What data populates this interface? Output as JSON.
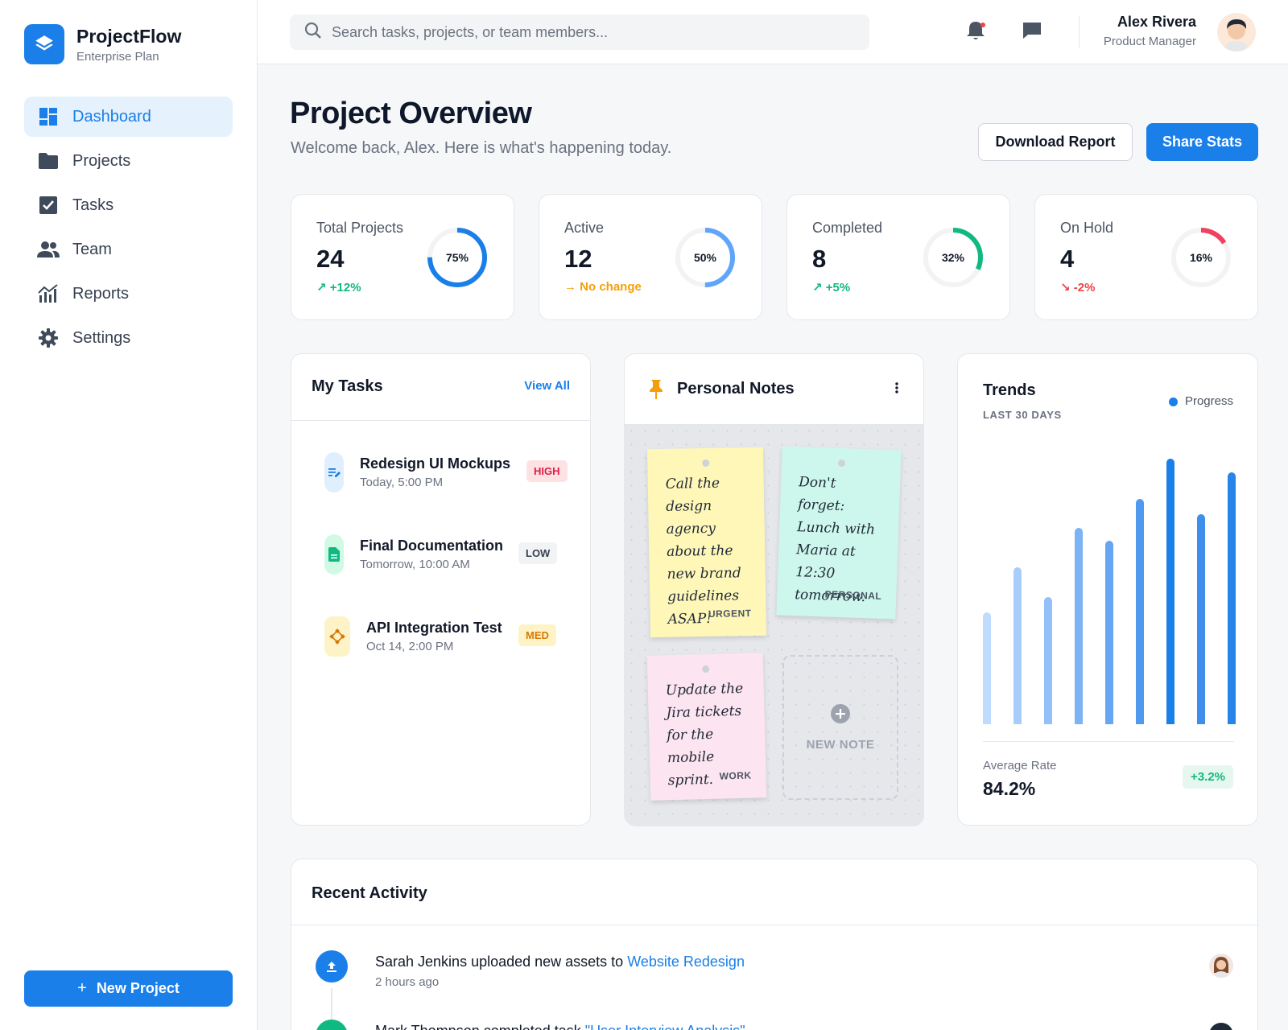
{
  "brand": {
    "name": "ProjectFlow",
    "plan": "Enterprise Plan"
  },
  "nav": [
    {
      "label": "Dashboard",
      "icon": "dashboard-icon",
      "active": true
    },
    {
      "label": "Projects",
      "icon": "folder-icon"
    },
    {
      "label": "Tasks",
      "icon": "checkbox-icon"
    },
    {
      "label": "Team",
      "icon": "people-icon"
    },
    {
      "label": "Reports",
      "icon": "bar-chart-icon"
    },
    {
      "label": "Settings",
      "icon": "gear-icon"
    }
  ],
  "new_project_label": "New Project",
  "search": {
    "placeholder": "Search tasks, projects, or team members..."
  },
  "user": {
    "name": "Alex Rivera",
    "role": "Product Manager"
  },
  "page": {
    "title": "Project Overview",
    "subtitle": "Welcome back, Alex. Here is what's happening today.",
    "download_label": "Download Report",
    "share_label": "Share Stats"
  },
  "stats": [
    {
      "label": "Total Projects",
      "value": "24",
      "trend": "+12%",
      "trend_icon": "trend-up-icon",
      "trend_color": "#10b981",
      "percent": 75,
      "percent_label": "75%",
      "ring_color": "#1a7fe8"
    },
    {
      "label": "Active",
      "value": "12",
      "trend": "No change",
      "trend_icon": "arrow-right-icon",
      "trend_color": "#f59e0b",
      "percent": 50,
      "percent_label": "50%",
      "ring_color": "#60a5fa"
    },
    {
      "label": "Completed",
      "value": "8",
      "trend": "+5%",
      "trend_icon": "trend-up-icon",
      "trend_color": "#10b981",
      "percent": 32,
      "percent_label": "32%",
      "ring_color": "#10b981"
    },
    {
      "label": "On Hold",
      "value": "4",
      "trend": "-2%",
      "trend_icon": "trend-down-icon",
      "trend_color": "#ef4444",
      "percent": 16,
      "percent_label": "16%",
      "ring_color": "#f43f5e"
    }
  ],
  "tasks": {
    "title": "My Tasks",
    "view_all": "View All",
    "items": [
      {
        "title": "Redesign UI Mockups",
        "time": "Today, 5:00 PM",
        "priority": "HIGH",
        "icon": "edit-document-icon"
      },
      {
        "title": "Final Documentation",
        "time": "Tomorrow, 10:00 AM",
        "priority": "LOW",
        "icon": "document-icon"
      },
      {
        "title": "API Integration Test",
        "time": "Oct 14, 2:00 PM",
        "priority": "MED",
        "icon": "api-icon"
      }
    ]
  },
  "notes": {
    "title": "Personal Notes",
    "items": [
      {
        "text": "Call the design agency about the new brand guidelines ASAP!",
        "tag": "URGENT",
        "color": "#fef7b8"
      },
      {
        "text": "Don't forget: Lunch with Maria at 12:30 tomorrow.",
        "tag": "PERSONAL",
        "color": "#cdf7ec"
      },
      {
        "text": "Update the Jira tickets for the mobile sprint.",
        "tag": "WORK",
        "color": "#fce4f0"
      }
    ],
    "new_note_label": "NEW NOTE"
  },
  "trends": {
    "title": "Trends",
    "period": "LAST 30 DAYS",
    "legend": "Progress",
    "avg_label": "Average Rate",
    "avg_value": "84.2%",
    "avg_change": "+3.2%",
    "values": [
      42,
      59,
      48,
      74,
      69,
      85,
      100,
      79,
      95
    ]
  },
  "activity": {
    "title": "Recent Activity",
    "items": [
      {
        "prefix": "Sarah Jenkins uploaded new assets to ",
        "link": "Website Redesign",
        "time": "2 hours ago",
        "icon": "upload-icon",
        "color": "#1a7fe8"
      },
      {
        "prefix": "Mark Thompson completed task ",
        "link": "\"User Interview Analysis\"",
        "time": "",
        "icon": "check-icon",
        "color": "#10b981"
      }
    ]
  }
}
